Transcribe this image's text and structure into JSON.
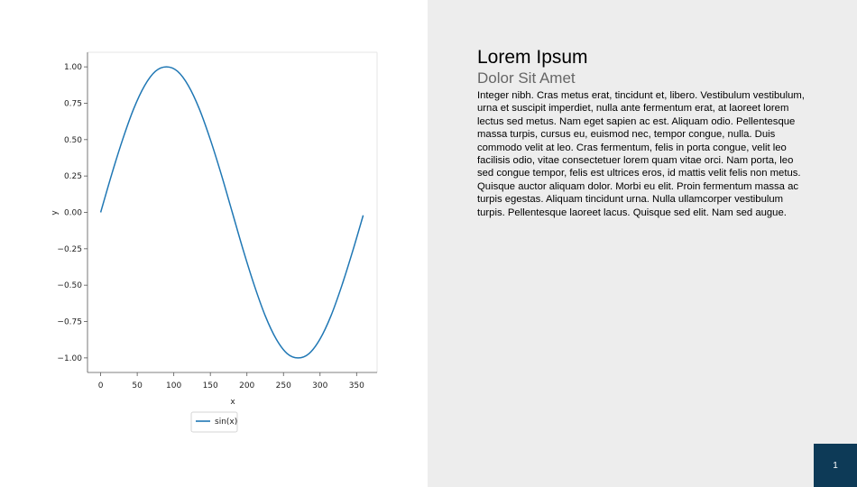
{
  "slide": {
    "title": "Lorem Ipsum",
    "subtitle": "Dolor Sit Amet",
    "body": "Integer nibh. Cras metus erat, tincidunt et, libero. Vestibulum vestibulum, urna et suscipit imperdiet, nulla ante fermentum erat, at laoreet lorem lectus sed metus. Nam eget sapien ac est. Aliquam odio. Pellentesque massa turpis, cursus eu, euismod nec, tempor congue, nulla. Duis commodo velit at leo. Cras fermentum, felis in porta congue, velit leo facilisis odio, vitae consectetuer lorem quam vitae orci. Nam porta, leo sed congue tempor, felis est ultrices eros, id mattis velit felis non metus. Quisque auctor aliquam dolor. Morbi eu elit. Proin fermentum massa ac turpis egestas. Aliquam tincidunt urna. Nulla ullamcorper vestibulum turpis. Pellentesque laoreet lacus. Quisque sed elit. Nam sed augue.",
    "page_number": "1"
  },
  "colors": {
    "line": "#1f77b4",
    "right_panel": "#ededed",
    "badge": "#0d3a57"
  },
  "chart_data": {
    "type": "line",
    "title": "",
    "xlabel": "x",
    "ylabel": "y",
    "xlim": [
      -18,
      378
    ],
    "ylim": [
      -1.1,
      1.1
    ],
    "x_ticks": [
      0,
      50,
      100,
      150,
      200,
      250,
      300,
      350
    ],
    "y_ticks": [
      1.0,
      0.75,
      0.5,
      0.25,
      0.0,
      -0.25,
      -0.5,
      -0.75,
      -1.0
    ],
    "x_tick_labels": [
      "0",
      "50",
      "100",
      "150",
      "200",
      "250",
      "300",
      "350"
    ],
    "y_tick_labels": [
      "1.00",
      "0.75",
      "0.50",
      "0.25",
      "0.00",
      "−0.25",
      "−0.50",
      "−0.75",
      "−1.00"
    ],
    "legend_position": "below",
    "grid": false,
    "series": [
      {
        "name": "sin(x)",
        "x": [
          0,
          15,
          30,
          45,
          60,
          75,
          90,
          105,
          120,
          135,
          150,
          165,
          180,
          195,
          210,
          225,
          240,
          255,
          270,
          285,
          300,
          315,
          330,
          345,
          359
        ],
        "y": [
          0.0,
          0.26,
          0.5,
          0.71,
          0.87,
          0.97,
          1.0,
          0.97,
          0.87,
          0.71,
          0.5,
          0.26,
          0.0,
          -0.26,
          -0.5,
          -0.71,
          -0.87,
          -0.97,
          -1.0,
          -0.97,
          -0.87,
          -0.71,
          -0.5,
          -0.26,
          -0.02
        ]
      }
    ]
  }
}
